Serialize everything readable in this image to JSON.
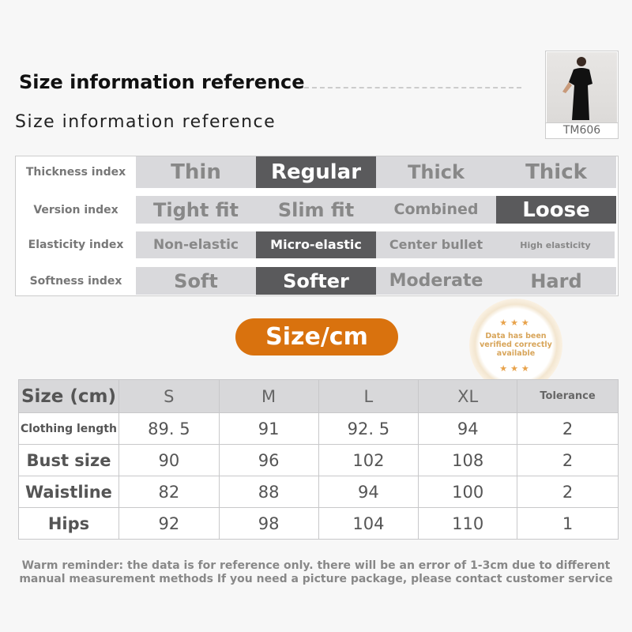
{
  "header": {
    "title_bold": "Size information reference",
    "title_regular": "Size information reference"
  },
  "product": {
    "code": "TM606"
  },
  "attributes": [
    {
      "label": "Thickness index",
      "options": [
        "Thin",
        "Regular",
        "Thick",
        "Thick"
      ],
      "selected": 1
    },
    {
      "label": "Version index",
      "options": [
        "Tight fit",
        "Slim fit",
        "Combined",
        "Loose"
      ],
      "selected": 3
    },
    {
      "label": "Elasticity index",
      "options": [
        "Non-elastic",
        "Micro-elastic",
        "Center bullet",
        "High elasticity"
      ],
      "selected": 1
    },
    {
      "label": "Softness index",
      "options": [
        "Soft",
        "Softer",
        "Moderate",
        "Hard"
      ],
      "selected": 1
    }
  ],
  "size_badge": "Size/cm",
  "seal": {
    "text": "Data has been verified correctly available",
    "accent": "#d8a55a"
  },
  "colors": {
    "accent": "#d9720e",
    "selected": "#5a5a5c",
    "cell": "#d9d9dc"
  },
  "size_table": {
    "headers": [
      "Size (cm)",
      "S",
      "M",
      "L",
      "XL",
      "Tolerance"
    ],
    "rows": [
      [
        "Clothing length",
        "89. 5",
        "91",
        "92. 5",
        "94",
        "2"
      ],
      [
        "Bust size",
        "90",
        "96",
        "102",
        "108",
        "2"
      ],
      [
        "Waistline",
        "82",
        "88",
        "94",
        "100",
        "2"
      ],
      [
        "Hips",
        "92",
        "98",
        "104",
        "110",
        "1"
      ]
    ]
  },
  "note": "Warm reminder: the data is for reference only. there will be an error of 1-3cm due to different manual measurement methods If you need a picture package, please contact customer service"
}
